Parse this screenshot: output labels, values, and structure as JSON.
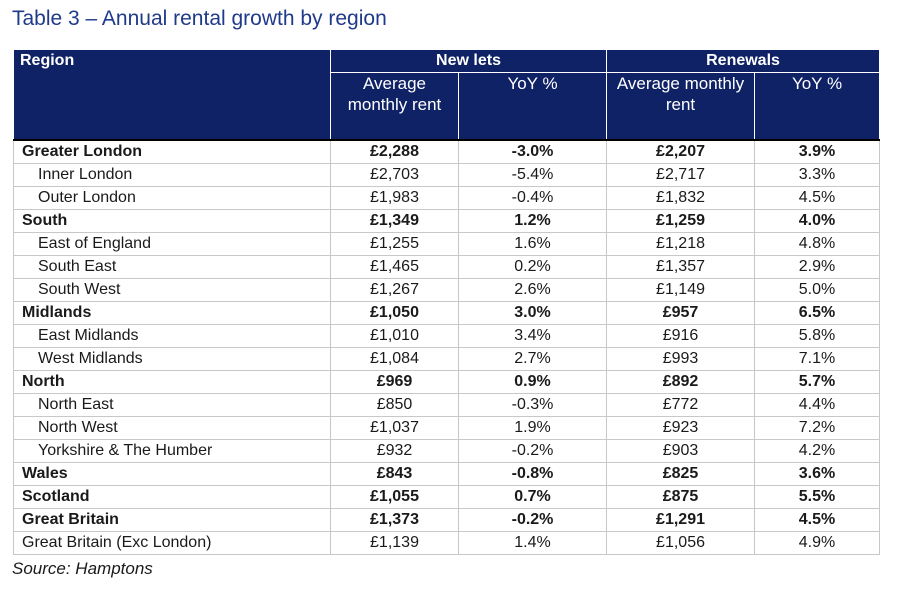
{
  "title": "Table 3 – Annual rental growth by region",
  "header": {
    "region": "Region",
    "new_lets": "New lets",
    "renewals": "Renewals",
    "avg_rent": "Average monthly rent",
    "yoy": "YoY %"
  },
  "rows": [
    {
      "region": "Greater London",
      "new_rent": "£2,288",
      "new_yoy": "-3.0%",
      "ren_rent": "£2,207",
      "ren_yoy": "3.9%",
      "level": "total"
    },
    {
      "region": "Inner London",
      "new_rent": "£2,703",
      "new_yoy": "-5.4%",
      "ren_rent": "£2,717",
      "ren_yoy": "3.3%",
      "level": "sub"
    },
    {
      "region": "Outer London",
      "new_rent": "£1,983",
      "new_yoy": "-0.4%",
      "ren_rent": "£1,832",
      "ren_yoy": "4.5%",
      "level": "sub"
    },
    {
      "region": "South",
      "new_rent": "£1,349",
      "new_yoy": "1.2%",
      "ren_rent": "£1,259",
      "ren_yoy": "4.0%",
      "level": "total"
    },
    {
      "region": "East of England",
      "new_rent": "£1,255",
      "new_yoy": "1.6%",
      "ren_rent": "£1,218",
      "ren_yoy": "4.8%",
      "level": "sub"
    },
    {
      "region": "South East",
      "new_rent": "£1,465",
      "new_yoy": "0.2%",
      "ren_rent": "£1,357",
      "ren_yoy": "2.9%",
      "level": "sub"
    },
    {
      "region": "South West",
      "new_rent": "£1,267",
      "new_yoy": "2.6%",
      "ren_rent": "£1,149",
      "ren_yoy": "5.0%",
      "level": "sub"
    },
    {
      "region": "Midlands",
      "new_rent": "£1,050",
      "new_yoy": "3.0%",
      "ren_rent": "£957",
      "ren_yoy": "6.5%",
      "level": "total"
    },
    {
      "region": "East Midlands",
      "new_rent": "£1,010",
      "new_yoy": "3.4%",
      "ren_rent": "£916",
      "ren_yoy": "5.8%",
      "level": "sub"
    },
    {
      "region": "West Midlands",
      "new_rent": "£1,084",
      "new_yoy": "2.7%",
      "ren_rent": "£993",
      "ren_yoy": "7.1%",
      "level": "sub"
    },
    {
      "region": "North",
      "new_rent": "£969",
      "new_yoy": "0.9%",
      "ren_rent": "£892",
      "ren_yoy": "5.7%",
      "level": "total"
    },
    {
      "region": "North East",
      "new_rent": "£850",
      "new_yoy": "-0.3%",
      "ren_rent": "£772",
      "ren_yoy": "4.4%",
      "level": "sub"
    },
    {
      "region": "North West",
      "new_rent": "£1,037",
      "new_yoy": "1.9%",
      "ren_rent": "£923",
      "ren_yoy": "7.2%",
      "level": "sub"
    },
    {
      "region": "Yorkshire & The Humber",
      "new_rent": "£932",
      "new_yoy": "-0.2%",
      "ren_rent": "£903",
      "ren_yoy": "4.2%",
      "level": "sub"
    },
    {
      "region": "Wales",
      "new_rent": "£843",
      "new_yoy": "-0.8%",
      "ren_rent": "£825",
      "ren_yoy": "3.6%",
      "level": "total"
    },
    {
      "region": "Scotland",
      "new_rent": "£1,055",
      "new_yoy": "0.7%",
      "ren_rent": "£875",
      "ren_yoy": "5.5%",
      "level": "total"
    },
    {
      "region": "Great Britain",
      "new_rent": "£1,373",
      "new_yoy": "-0.2%",
      "ren_rent": "£1,291",
      "ren_yoy": "4.5%",
      "level": "total"
    },
    {
      "region": "Great Britain (Exc London)",
      "new_rent": "£1,139",
      "new_yoy": "1.4%",
      "ren_rent": "£1,056",
      "ren_yoy": "4.9%",
      "level": "plain"
    }
  ],
  "source": "Source: Hamptons",
  "colors": {
    "header_bg": "#0f2266",
    "title": "#1f3a8a"
  }
}
